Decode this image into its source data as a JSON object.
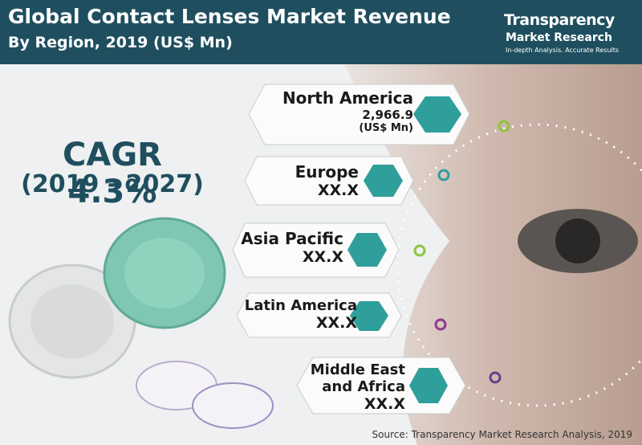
{
  "header": {
    "title": "Global Contact Lenses Market Revenue",
    "subtitle": "By Region, 2019 (US$ Mn)"
  },
  "logo": {
    "name": "Transparency",
    "line2": "Market Research",
    "tagline": "In-depth Analysis. Accurate Results"
  },
  "cagr": {
    "label": "CAGR 4.3%",
    "period": "(2019 - 2027)"
  },
  "regions": [
    {
      "name": "North America",
      "value": "2,966.9",
      "unit": "(US$ Mn)"
    },
    {
      "name": "Europe",
      "value": "XX.X"
    },
    {
      "name": "Asia Pacific",
      "value": "XX.X"
    },
    {
      "name": "Latin America",
      "value": "XX.X"
    },
    {
      "name": "Middle East and Africa",
      "value": "XX.X"
    }
  ],
  "source": "Source: Transparency Market Research Analysis, 2019"
}
